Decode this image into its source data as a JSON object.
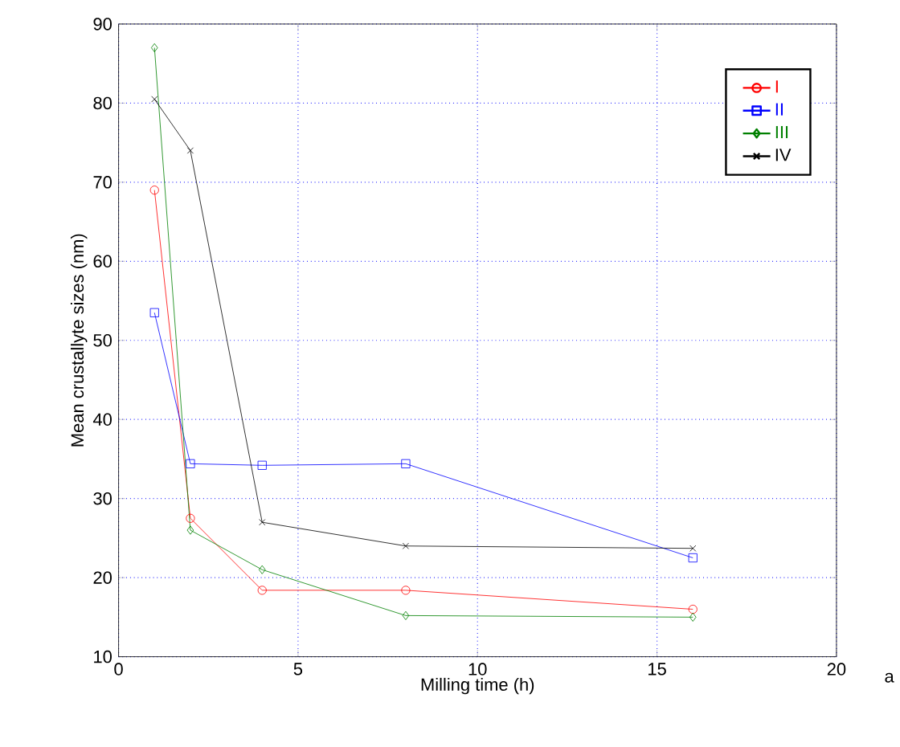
{
  "chart_data": {
    "type": "line",
    "xlabel": "Milling time (h)",
    "ylabel": "Mean crustallyte sizes (nm)",
    "xlim": [
      0,
      20
    ],
    "ylim": [
      10,
      90
    ],
    "xticks": [
      0,
      5,
      10,
      15,
      20
    ],
    "yticks": [
      10,
      20,
      30,
      40,
      50,
      60,
      70,
      80,
      90
    ],
    "grid": true,
    "legend": "top right",
    "annotations": [
      "a"
    ],
    "x": [
      1,
      2,
      4,
      8,
      16
    ],
    "series": [
      {
        "name": "I",
        "color": "#ff0000",
        "marker": "circle",
        "values": [
          69,
          27.5,
          18.4,
          18.4,
          16
        ]
      },
      {
        "name": "II",
        "color": "#0000ff",
        "marker": "square",
        "values": [
          53.5,
          34.4,
          34.2,
          34.4,
          22.5
        ]
      },
      {
        "name": "III",
        "color": "#008000",
        "marker": "diamond",
        "values": [
          87,
          26,
          21,
          15.2,
          15
        ]
      },
      {
        "name": "IV",
        "color": "#000000",
        "marker": "cross",
        "values": [
          80.5,
          74,
          27,
          24,
          23.7
        ]
      }
    ]
  }
}
